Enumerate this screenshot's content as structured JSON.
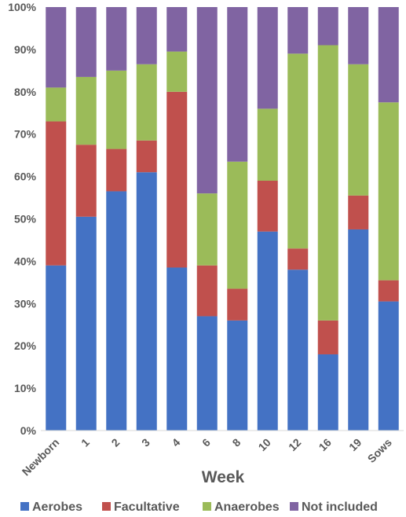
{
  "chart_data": {
    "type": "bar",
    "stacked": true,
    "xlabel": "Week",
    "ylabel": "",
    "ylim": [
      0,
      100
    ],
    "yticks": [
      "0%",
      "10%",
      "20%",
      "30%",
      "40%",
      "50%",
      "60%",
      "70%",
      "80%",
      "90%",
      "100%"
    ],
    "categories": [
      "Newborn",
      "1",
      "2",
      "3",
      "4",
      "6",
      "8",
      "10",
      "12",
      "16",
      "19",
      "Sows"
    ],
    "series": [
      {
        "name": "Aerobes",
        "color": "#4472C4",
        "values": [
          39,
          50.5,
          56.5,
          61,
          38.5,
          27,
          26,
          47,
          38,
          18,
          47.5,
          30.5
        ]
      },
      {
        "name": "Facultative",
        "color": "#C0504D",
        "values": [
          34,
          17,
          10,
          7.5,
          41.5,
          12,
          7.5,
          12,
          5,
          8,
          8,
          5
        ]
      },
      {
        "name": "Anaerobes",
        "color": "#9BBB59",
        "values": [
          8,
          16,
          18.5,
          18,
          9.5,
          17,
          30,
          17,
          46,
          65,
          31,
          42
        ]
      },
      {
        "name": "Not included",
        "color": "#8064A2",
        "values": [
          19,
          16.5,
          15,
          13.5,
          10.5,
          44,
          36.5,
          24,
          11,
          9,
          13.5,
          22.5
        ]
      }
    ],
    "legend_position": "bottom",
    "grid": false
  }
}
